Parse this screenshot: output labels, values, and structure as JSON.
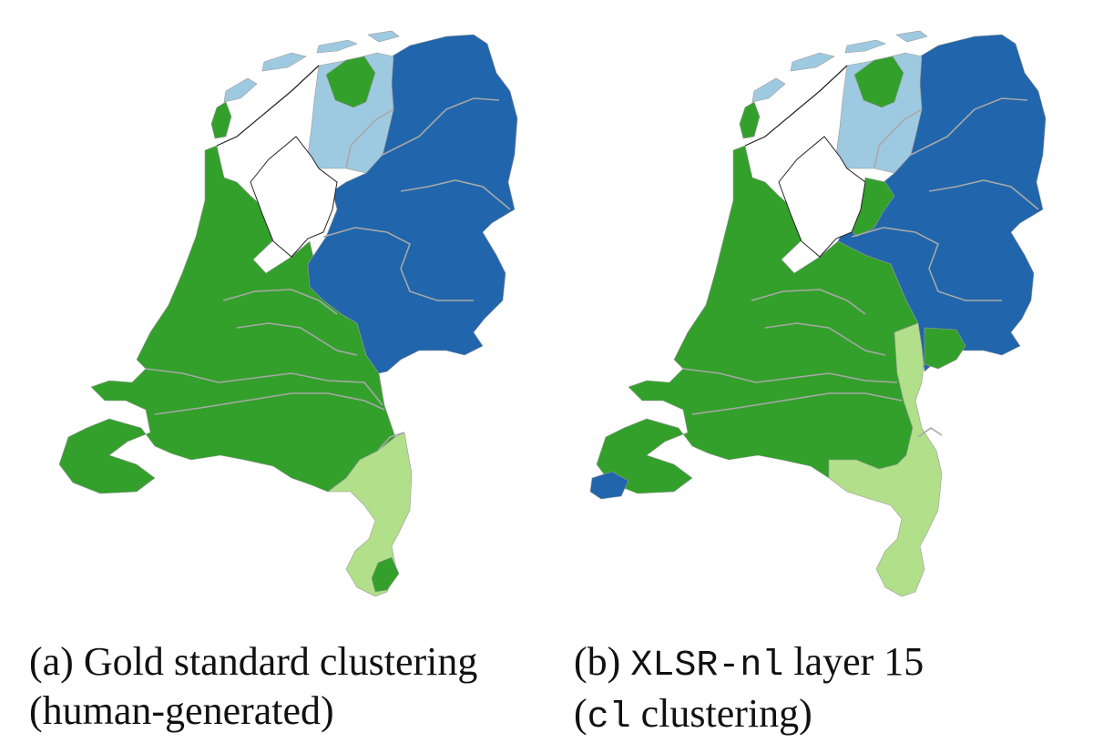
{
  "colors": {
    "dark_blue": "#2166ac",
    "light_blue": "#9ecae1",
    "dark_green": "#33a02c",
    "light_green": "#b2df8a",
    "border": "#9a9a9a",
    "coast": "#222222"
  },
  "panel_a": {
    "caption_line1": "(a) Gold standard clustering",
    "caption_line2": "(human-generated)"
  },
  "panel_b": {
    "caption_prefix": "(b) ",
    "caption_model": "XLSR-nl",
    "caption_suffix": " layer 15",
    "caption_open": "(",
    "caption_method": "cl",
    "caption_close": " clustering)"
  }
}
